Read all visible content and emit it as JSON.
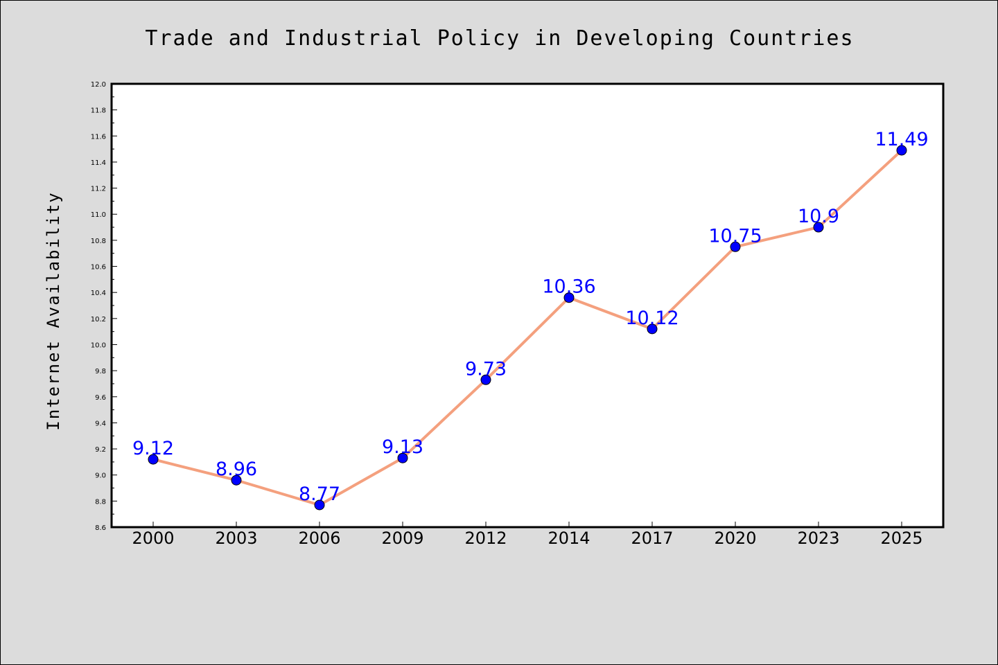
{
  "chart_data": {
    "type": "line",
    "title": "Trade and Industrial Policy in Developing Countries",
    "xlabel": "",
    "ylabel": "Internet Availability",
    "categories": [
      "2000",
      "2003",
      "2006",
      "2009",
      "2012",
      "2014",
      "2017",
      "2020",
      "2023",
      "2025"
    ],
    "series": [
      {
        "values": [
          9.12,
          8.96,
          8.77,
          9.13,
          9.73,
          10.36,
          10.12,
          10.75,
          10.9,
          11.49
        ],
        "labels": [
          "9.12",
          "8.96",
          "8.77",
          "9.13",
          "9.73",
          "10.36",
          "10.12",
          "10.75",
          "10.9",
          "11.49"
        ],
        "line_color": "#f4a07e",
        "marker_color": "#0000ff",
        "label_color": "#0000ff"
      }
    ],
    "ylim": [
      8.6,
      12.0
    ],
    "yticks": [
      "8.6",
      "8.8",
      "9.0",
      "9.2",
      "9.4",
      "9.6",
      "9.8",
      "10.0",
      "10.2",
      "10.4",
      "10.6",
      "10.8",
      "11.0",
      "11.2",
      "11.4",
      "11.6",
      "11.8",
      "12.0"
    ],
    "ytick_step": 0.2,
    "grid": false,
    "legend": "none",
    "background_color": "#dcdcdc",
    "plot_background": "#ffffff"
  }
}
